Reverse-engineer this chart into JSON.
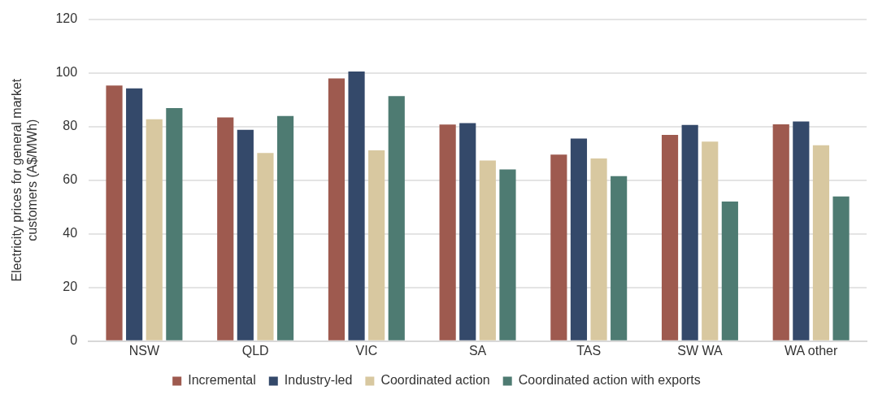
{
  "chart_data": {
    "type": "bar",
    "ylabel": "Electricity prices for general market customers (A$/MWh)",
    "categories": [
      "NSW",
      "QLD",
      "VIC",
      "SA",
      "TAS",
      "SW WA",
      "WA other"
    ],
    "series": [
      {
        "name": "Incremental",
        "color": "#9e5a4f",
        "values": [
          95.3,
          83.4,
          97.9,
          80.7,
          69.5,
          76.9,
          80.8
        ]
      },
      {
        "name": "Industry-led",
        "color": "#34496a",
        "values": [
          94.2,
          78.8,
          100.5,
          81.3,
          75.5,
          80.6,
          81.9
        ]
      },
      {
        "name": "Coordinated action",
        "color": "#d8c8a0",
        "values": [
          82.7,
          70.1,
          71.1,
          67.3,
          68.1,
          74.4,
          73.0
        ]
      },
      {
        "name": "Coordinated action with exports",
        "color": "#4e7b72",
        "values": [
          86.9,
          83.9,
          91.3,
          64.0,
          61.5,
          52.0,
          53.9
        ]
      }
    ],
    "ylim": [
      0,
      120
    ],
    "yticks": [
      0,
      20,
      40,
      60,
      80,
      100,
      120
    ],
    "grid": "y",
    "legend": "bottom"
  }
}
